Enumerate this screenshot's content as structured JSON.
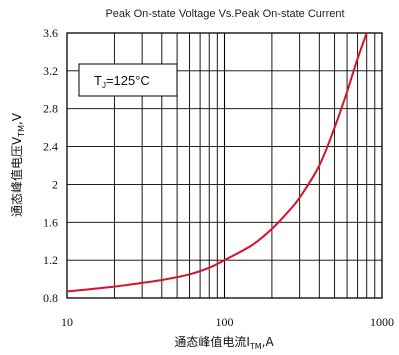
{
  "chart_data": {
    "type": "line",
    "title": "Peak On-state Voltage Vs.Peak On-state Current",
    "x_scale": "log",
    "xlim": [
      10,
      1000
    ],
    "ylim": [
      0.8,
      3.6
    ],
    "x_tick_labels": [
      "10",
      "100",
      "1000"
    ],
    "y_tick_labels": [
      "0.8",
      "1.2",
      "1.6",
      "2",
      "2.4",
      "2.8",
      "3.2",
      "3.6"
    ],
    "xlabel": {
      "main": "通态峰值电流I",
      "sub": "TM",
      "suffix": ",A"
    },
    "ylabel": {
      "main": "通态峰值电压V",
      "sub": "TM",
      "suffix": ",V"
    },
    "annotation": {
      "main": "T",
      "sub": "J",
      "suffix": "=125°C"
    },
    "grid": true,
    "series": [
      {
        "color": "#d4142a",
        "x": [
          10,
          20,
          30,
          40,
          60,
          80,
          100,
          150,
          200,
          250,
          300,
          400,
          500,
          600,
          700,
          800
        ],
        "y": [
          0.87,
          0.92,
          0.96,
          0.99,
          1.05,
          1.12,
          1.2,
          1.36,
          1.53,
          1.7,
          1.86,
          2.2,
          2.6,
          2.98,
          3.33,
          3.6
        ]
      }
    ]
  }
}
